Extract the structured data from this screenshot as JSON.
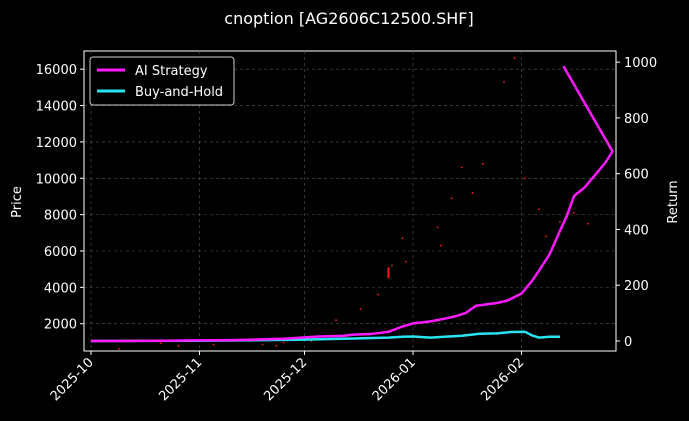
{
  "chart_data": {
    "type": "line",
    "title": "cnoption [AG2606C12500.SHF]",
    "xlabel": "",
    "ylabel": "Price",
    "y2label": "Return",
    "x_range": [
      "2025-09-29",
      "2026-02-28"
    ],
    "x_ticks": [
      "2025-10-01",
      "2025-11-01",
      "2025-12-01",
      "2026-01-01",
      "2026-02-01"
    ],
    "x_tick_labels": [
      "2025-10",
      "2025-11",
      "2025-12",
      "2026-01",
      "2026-02"
    ],
    "ylim": [
      500,
      17000
    ],
    "y_ticks": [
      2000,
      4000,
      6000,
      8000,
      10000,
      12000,
      14000,
      16000
    ],
    "y2lim": [
      -36,
      1040
    ],
    "y2_ticks": [
      0,
      200,
      400,
      600,
      800,
      1000
    ],
    "grid": true,
    "legend": "top-left",
    "series": [
      {
        "name": "AI Strategy",
        "axis": "right",
        "color": "#ff1aff",
        "points": [
          [
            "2025-10-01",
            0
          ],
          [
            "2025-10-10",
            0
          ],
          [
            "2025-10-20",
            1
          ],
          [
            "2025-10-31",
            2
          ],
          [
            "2025-11-10",
            3
          ],
          [
            "2025-11-15",
            4
          ],
          [
            "2025-11-20",
            6
          ],
          [
            "2025-11-25",
            8
          ],
          [
            "2025-11-30",
            12
          ],
          [
            "2025-12-05",
            16
          ],
          [
            "2025-12-12",
            18
          ],
          [
            "2025-12-15",
            23
          ],
          [
            "2025-12-20",
            25
          ],
          [
            "2025-12-25",
            33
          ],
          [
            "2025-12-29",
            52
          ],
          [
            "2026-01-01",
            63
          ],
          [
            "2026-01-06",
            70
          ],
          [
            "2026-01-10",
            80
          ],
          [
            "2026-01-13",
            88
          ],
          [
            "2026-01-16",
            100
          ],
          [
            "2026-01-19",
            126
          ],
          [
            "2026-01-22",
            131
          ],
          [
            "2026-01-25",
            136
          ],
          [
            "2026-01-28",
            145
          ],
          [
            "2026-02-01",
            170
          ],
          [
            "2026-02-04",
            215
          ],
          [
            "2026-02-06",
            252
          ],
          [
            "2026-02-09",
            310
          ],
          [
            "2026-02-12",
            395
          ],
          [
            "2026-02-14",
            450
          ],
          [
            "2026-02-16",
            520
          ],
          [
            "2026-02-19",
            550
          ],
          [
            "2026-02-21",
            580
          ],
          [
            "2026-02-23",
            610
          ],
          [
            "2026-02-25",
            640
          ],
          [
            "2026-02-27",
            680
          ],
          [
            "2026-02-13",
            985
          ]
        ]
      },
      {
        "name": "Buy-and-Hold",
        "axis": "right",
        "color": "#29e3f0",
        "points": [
          [
            "2025-10-01",
            0
          ],
          [
            "2025-11-01",
            1
          ],
          [
            "2025-11-20",
            3
          ],
          [
            "2025-12-01",
            5
          ],
          [
            "2025-12-15",
            9
          ],
          [
            "2025-12-25",
            12
          ],
          [
            "2025-12-29",
            15
          ],
          [
            "2026-01-01",
            16
          ],
          [
            "2026-01-06",
            12
          ],
          [
            "2026-01-10",
            15
          ],
          [
            "2026-01-15",
            19
          ],
          [
            "2026-01-20",
            26
          ],
          [
            "2026-01-25",
            27
          ],
          [
            "2026-01-29",
            32
          ],
          [
            "2026-02-02",
            33
          ],
          [
            "2026-02-04",
            20
          ],
          [
            "2026-02-06",
            12
          ],
          [
            "2026-02-09",
            15
          ],
          [
            "2026-02-12",
            15
          ]
        ]
      }
    ],
    "scatter_price": [
      [
        "2025-10-09",
        620
      ],
      [
        "2025-10-21",
        920
      ],
      [
        "2025-10-26",
        780
      ],
      [
        "2025-11-05",
        850
      ],
      [
        "2025-11-19",
        860
      ],
      [
        "2025-11-23",
        790
      ],
      [
        "2025-11-25",
        960
      ],
      [
        "2025-12-03",
        1050
      ],
      [
        "2025-12-10",
        2200
      ],
      [
        "2025-12-17",
        2800
      ],
      [
        "2025-12-22",
        3600
      ],
      [
        "2025-12-25",
        4600
      ],
      [
        "2025-12-26",
        5200
      ],
      [
        "2025-12-29",
        6700
      ],
      [
        "2025-12-30",
        5400
      ],
      [
        "2026-01-08",
        7300
      ],
      [
        "2026-01-09",
        6300
      ],
      [
        "2026-01-12",
        8900
      ],
      [
        "2026-01-15",
        10600
      ],
      [
        "2026-01-18",
        9200
      ],
      [
        "2026-01-21",
        10800
      ],
      [
        "2026-01-27",
        15300
      ],
      [
        "2026-01-30",
        16600
      ],
      [
        "2026-02-02",
        10000
      ],
      [
        "2026-02-06",
        8300
      ],
      [
        "2026-02-08",
        6800
      ],
      [
        "2026-02-12",
        7600
      ],
      [
        "2026-02-14",
        7900
      ],
      [
        "2026-02-16",
        8100
      ],
      [
        "2026-02-20",
        7500
      ]
    ],
    "candle": [
      "2025-12-25",
      4500,
      5100
    ]
  }
}
